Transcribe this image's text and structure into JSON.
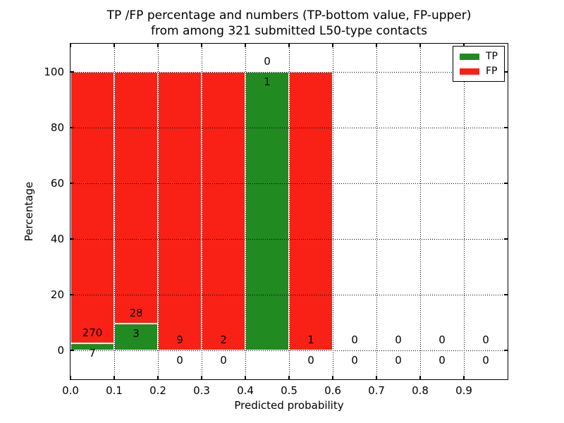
{
  "figure": {
    "title_line1": "TP /FP percentage and numbers (TP-bottom value, FP-upper)",
    "title_line2": "from among 321 submitted L50-type contacts",
    "background": "#ffffff"
  },
  "chart_data": {
    "type": "bar",
    "stacked": true,
    "title": "TP /FP percentage and numbers (TP-bottom value, FP-upper) from among 321 submitted L50-type contacts",
    "xlabel": "Predicted probability",
    "ylabel": "Percentage",
    "total_contacts": 321,
    "bin_width": 0.1,
    "x_bins": [
      "0.0-0.1",
      "0.1-0.2",
      "0.2-0.3",
      "0.3-0.4",
      "0.4-0.5",
      "0.5-0.6",
      "0.6-0.7",
      "0.7-0.8",
      "0.8-0.9",
      "0.9-1.0"
    ],
    "series": [
      {
        "name": "TP",
        "color": "#218a21",
        "counts": [
          7,
          3,
          0,
          0,
          1,
          0,
          0,
          0,
          0,
          0
        ]
      },
      {
        "name": "FP",
        "color": "#f92116",
        "counts": [
          270,
          28,
          9,
          2,
          0,
          1,
          0,
          0,
          0,
          0
        ]
      }
    ],
    "bars_note": "each non-empty bin stacks TP% (bottom, green) and FP% (top, red) to 100%",
    "xticks": [
      "0.0",
      "0.1",
      "0.2",
      "0.3",
      "0.4",
      "0.5",
      "0.6",
      "0.7",
      "0.8",
      "0.9"
    ],
    "yticks": [
      "0",
      "20",
      "40",
      "60",
      "80",
      "100"
    ],
    "xlim": [
      0.0,
      1.0
    ],
    "ylim": [
      -10.35,
      110.15
    ],
    "grid": "dotted",
    "legend": {
      "position": "upper right",
      "items": [
        {
          "label": "TP",
          "color": "#218a21"
        },
        {
          "label": "FP",
          "color": "#f92116"
        }
      ]
    }
  }
}
